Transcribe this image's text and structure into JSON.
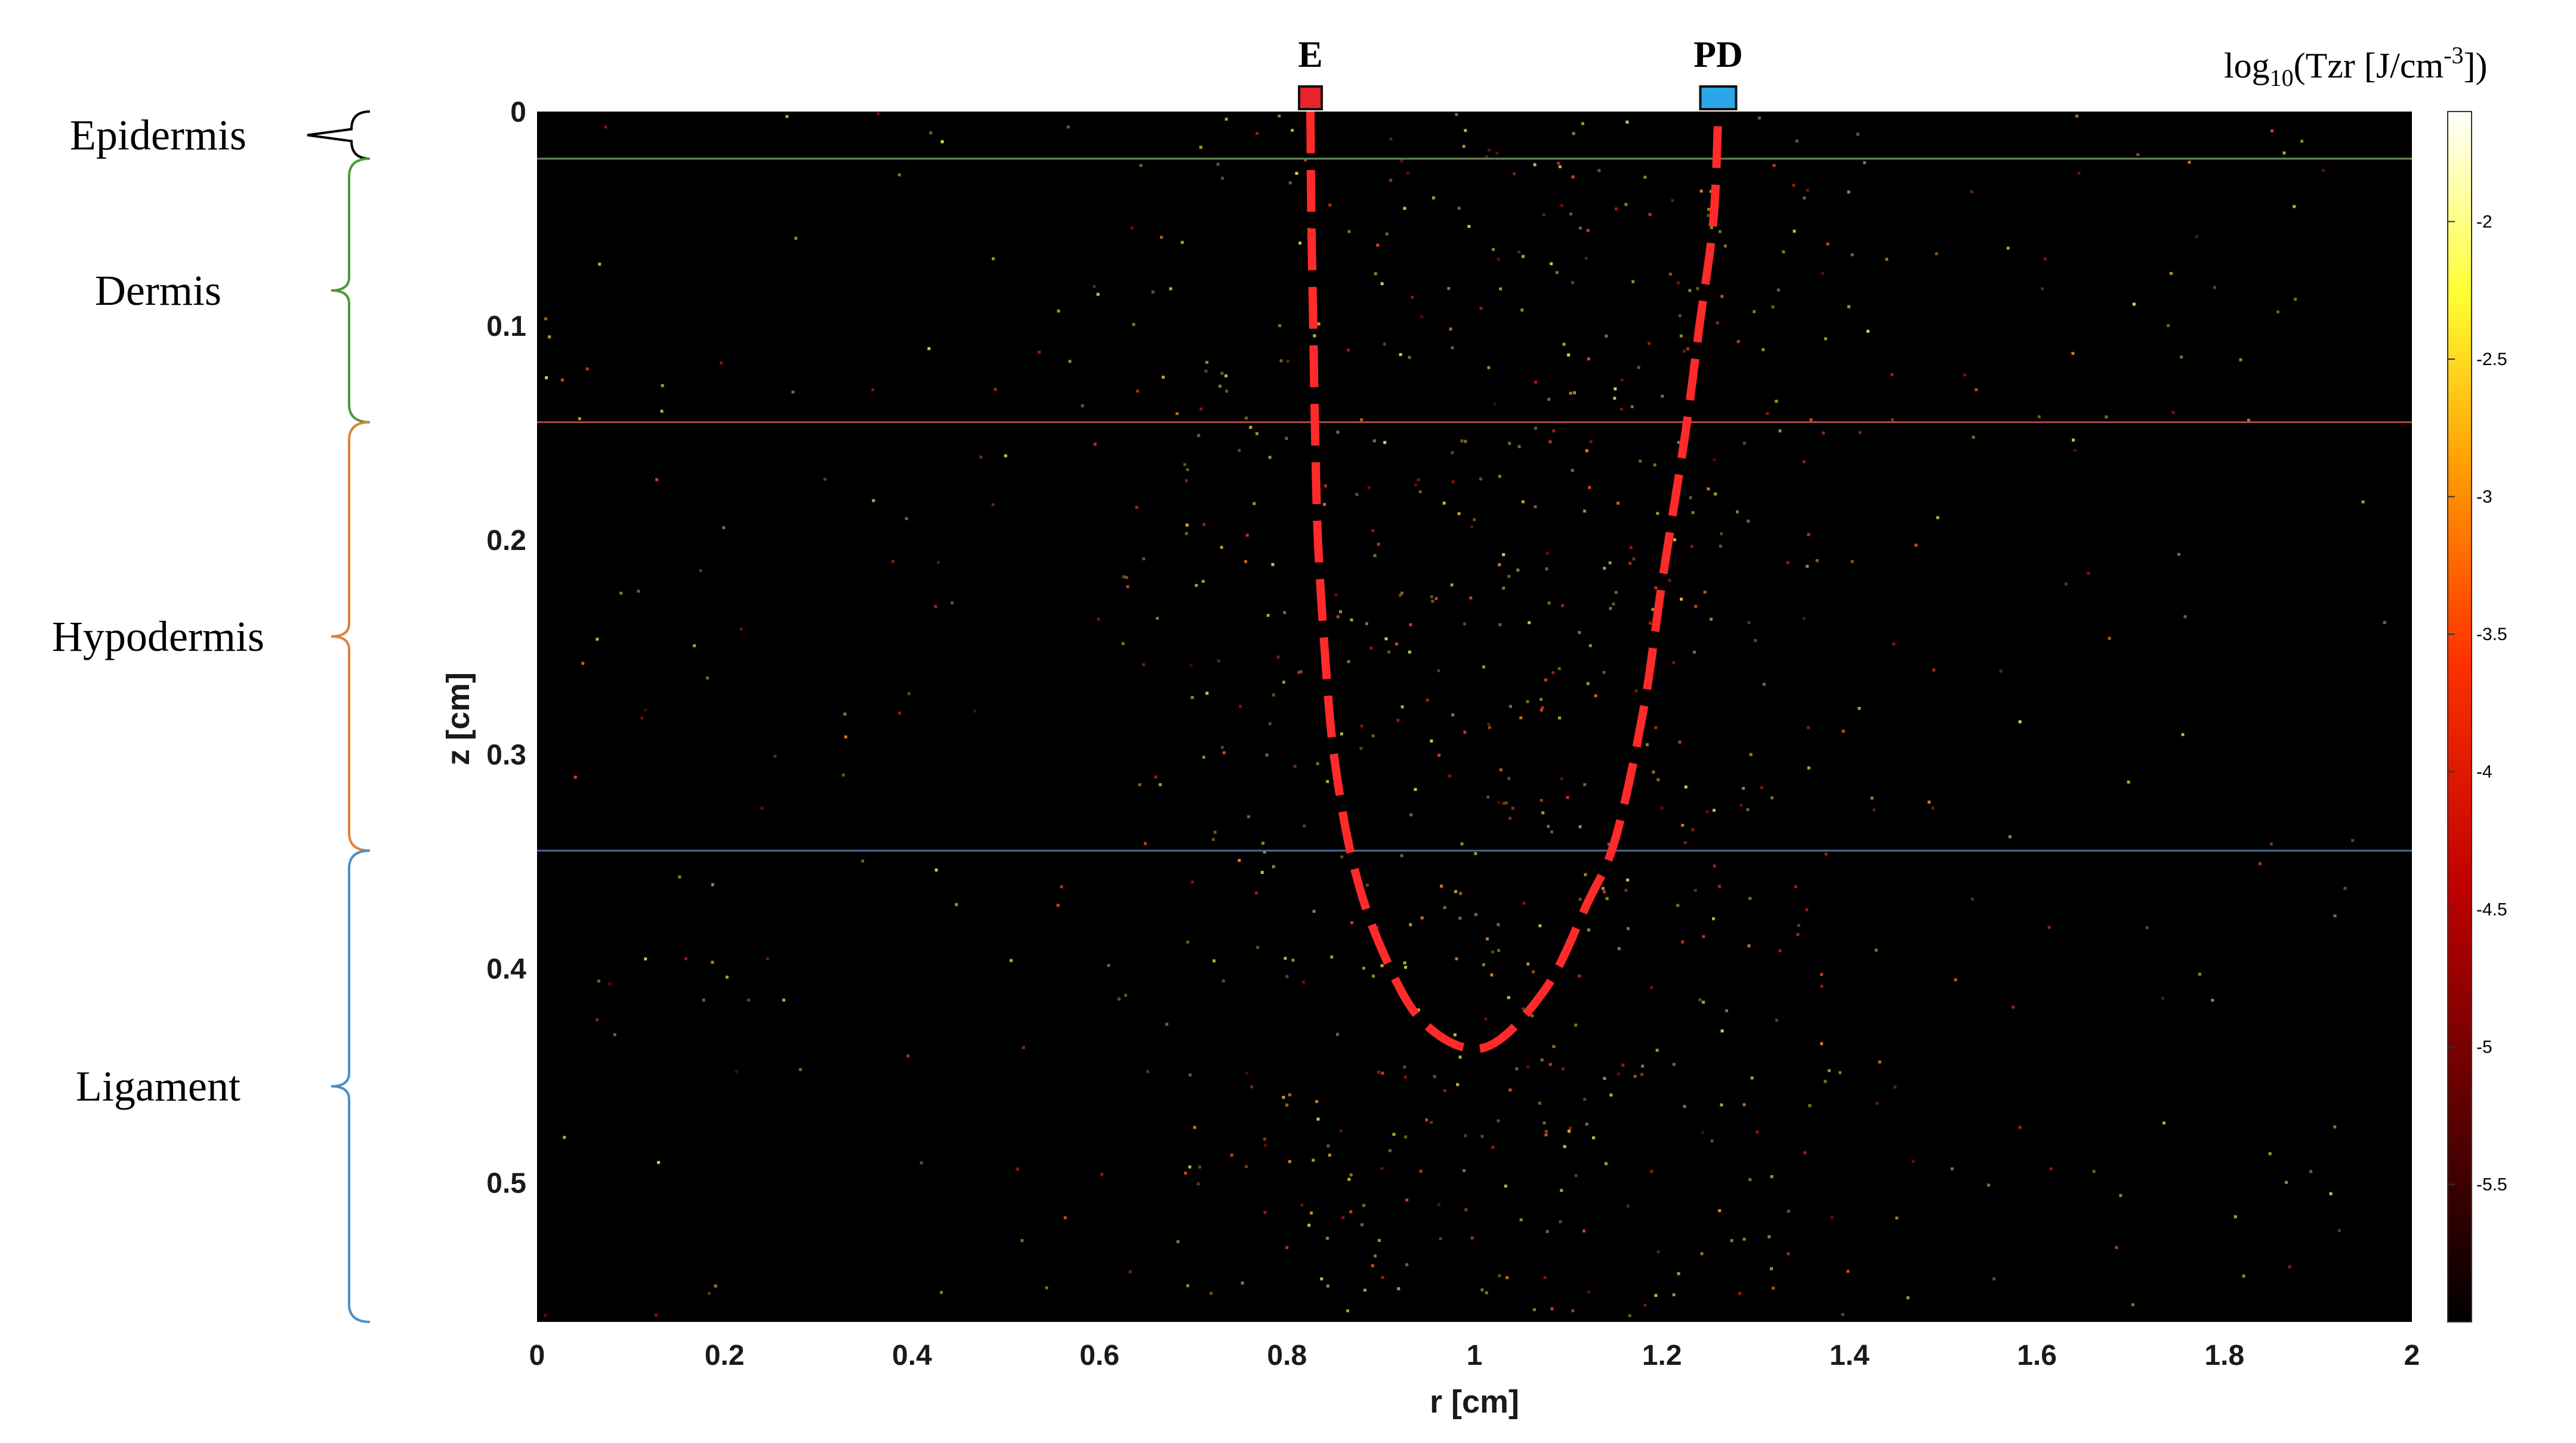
{
  "chart_data": {
    "type": "heatmap",
    "xlabel": "r [cm]",
    "ylabel": "z [cm]",
    "xlim": [
      0,
      2
    ],
    "ylim": [
      0,
      0.565
    ],
    "y_reversed": true,
    "xticks": [
      "0",
      "0.2",
      "0.4",
      "0.6",
      "0.8",
      "1",
      "1.2",
      "1.4",
      "1.6",
      "1.8",
      "2"
    ],
    "yticks": [
      "0",
      "0.1",
      "0.2",
      "0.3",
      "0.4",
      "0.5"
    ],
    "colorbar": {
      "title_main": "log",
      "title_sub": "10",
      "title_rest": "(Tzr [J/cm",
      "title_sup": "-3",
      "title_end": "])",
      "range": [
        -6,
        -1.6
      ],
      "ticks": [
        "-2",
        "-2.5",
        "-3",
        "-3.5",
        "-4",
        "-4.5",
        "-5",
        "-5.5"
      ],
      "colormap": "hot"
    },
    "layers": [
      {
        "name": "Epidermis",
        "z_top": 0,
        "z_bottom": 0.022,
        "color": "#000000",
        "boundary_color": "#6a8a5a"
      },
      {
        "name": "Dermis",
        "z_top": 0.022,
        "z_bottom": 0.145,
        "color": "#4e9a3a",
        "boundary_color": "#b04a4a"
      },
      {
        "name": "Hypodermis",
        "z_top": 0.145,
        "z_bottom": 0.345,
        "color": "#e0813a",
        "boundary_color": "#4a6a9a"
      },
      {
        "name": "Ligament",
        "z_top": 0.345,
        "z_bottom": 0.565,
        "color": "#4a90c8",
        "boundary_color": null
      }
    ],
    "markers": [
      {
        "label": "E",
        "r": 0.825,
        "color": "#e8232a"
      },
      {
        "label": "PD",
        "r": 1.26,
        "color": "#2aa6e8"
      }
    ],
    "banana_path": {
      "color": "#ff2a2a",
      "dashed": true,
      "points": [
        [
          0.825,
          0.0
        ],
        [
          0.826,
          0.05
        ],
        [
          0.828,
          0.1
        ],
        [
          0.83,
          0.15
        ],
        [
          0.833,
          0.2
        ],
        [
          0.84,
          0.25
        ],
        [
          0.85,
          0.3
        ],
        [
          0.87,
          0.35
        ],
        [
          0.9,
          0.39
        ],
        [
          0.945,
          0.425
        ],
        [
          1.01,
          0.437
        ],
        [
          1.075,
          0.41
        ],
        [
          1.12,
          0.37
        ],
        [
          1.15,
          0.34
        ],
        [
          1.18,
          0.28
        ],
        [
          1.2,
          0.22
        ],
        [
          1.225,
          0.15
        ],
        [
          1.24,
          0.1
        ],
        [
          1.255,
          0.05
        ],
        [
          1.26,
          0.0
        ]
      ]
    }
  }
}
